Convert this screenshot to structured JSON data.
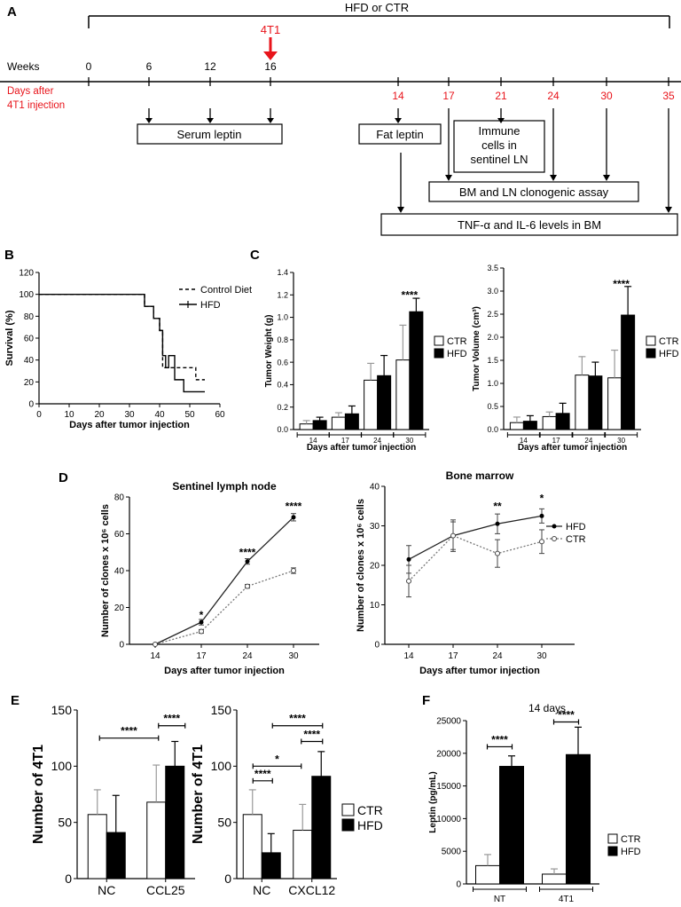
{
  "panels": {
    "A": "A",
    "B": "B",
    "C": "C",
    "D": "D",
    "E": "E",
    "F": "F"
  },
  "timeline": {
    "hfd_ctr": "HFD or CTR",
    "injection": "4T1",
    "weeks_label": "Weeks",
    "weeks": [
      "0",
      "6",
      "12",
      "16"
    ],
    "days_label_1": "Days after",
    "days_label_2": "4T1 injection",
    "days": [
      "14",
      "17",
      "21",
      "24",
      "30",
      "35"
    ],
    "serum_leptin": "Serum leptin",
    "fat_leptin": "Fat leptin",
    "immune": [
      "Immune",
      "cells in",
      "sentinel LN"
    ],
    "clonogenic": "BM and LN clonogenic assay",
    "cytokines": "TNF-α and IL-6 levels in BM",
    "colors": {
      "red": "#e8141b"
    }
  },
  "chart_data": [
    {
      "id": "B",
      "type": "line",
      "title": "",
      "xlabel": "Days after tumor injection",
      "ylabel": "Survival (%)",
      "xlim": [
        0,
        60
      ],
      "ylim": [
        0,
        120
      ],
      "xticks": [
        "0",
        "10",
        "20",
        "30",
        "40",
        "50",
        "60"
      ],
      "yticks": [
        "0",
        "20",
        "40",
        "60",
        "80",
        "100",
        "120"
      ],
      "series": [
        {
          "name": "Control Diet",
          "style": "dashed",
          "x": [
            0,
            35,
            35,
            38,
            38,
            40,
            40,
            41,
            41,
            43,
            43,
            52,
            52,
            55
          ],
          "y": [
            100,
            100,
            89,
            89,
            78,
            78,
            67,
            67,
            33,
            33,
            33,
            33,
            22,
            22
          ]
        },
        {
          "name": "HFD",
          "style": "solid",
          "x": [
            0,
            35,
            35,
            38,
            38,
            40,
            40,
            41,
            41,
            42,
            42,
            43,
            43,
            45,
            45,
            48,
            48,
            55
          ],
          "y": [
            100,
            100,
            89,
            89,
            78,
            78,
            67,
            67,
            44,
            44,
            33,
            33,
            44,
            44,
            22,
            22,
            11,
            11
          ]
        }
      ]
    },
    {
      "id": "C1",
      "type": "bar",
      "xlabel": "Days after tumor injection",
      "ylabel": "Tumor Weight (g)",
      "ylim": [
        0,
        1.4
      ],
      "yticks": [
        "0.0",
        "0.2",
        "0.4",
        "0.6",
        "0.8",
        "1.0",
        "1.2",
        "1.4"
      ],
      "categories": [
        "14",
        "17",
        "24",
        "30"
      ],
      "series": [
        {
          "name": "CTR",
          "values": [
            0.05,
            0.11,
            0.44,
            0.62
          ],
          "errors": [
            0.03,
            0.04,
            0.15,
            0.31
          ]
        },
        {
          "name": "HFD",
          "values": [
            0.08,
            0.14,
            0.48,
            1.05
          ],
          "errors": [
            0.03,
            0.07,
            0.18,
            0.12
          ]
        }
      ],
      "annotations": [
        {
          "text": "****",
          "category": "30"
        }
      ]
    },
    {
      "id": "C2",
      "type": "bar",
      "xlabel": "Days after tumor injection",
      "ylabel": "Tumor Volume (cm³)",
      "ylim": [
        0,
        3.5
      ],
      "yticks": [
        "0.0",
        "0.5",
        "1.0",
        "1.5",
        "2.0",
        "2.5",
        "3.0",
        "3.5"
      ],
      "categories": [
        "14",
        "17",
        "24",
        "30"
      ],
      "series": [
        {
          "name": "CTR",
          "values": [
            0.15,
            0.28,
            1.18,
            1.12
          ],
          "errors": [
            0.12,
            0.1,
            0.4,
            0.6
          ]
        },
        {
          "name": "HFD",
          "values": [
            0.18,
            0.35,
            1.16,
            2.48
          ],
          "errors": [
            0.12,
            0.22,
            0.3,
            0.62
          ]
        }
      ],
      "annotations": [
        {
          "text": "****",
          "category": "30"
        }
      ]
    },
    {
      "id": "D1",
      "type": "line",
      "title": "Sentinel lymph node",
      "xlabel": "Days after tumor injection",
      "ylabel": "Number of clones x 10⁶ cells",
      "ylim": [
        0,
        80
      ],
      "yticks": [
        "0",
        "20",
        "40",
        "60",
        "80"
      ],
      "categories": [
        "14",
        "17",
        "24",
        "30"
      ],
      "series": [
        {
          "name": "HFD",
          "style": "solid",
          "values": [
            0,
            12,
            45,
            69
          ],
          "errors": [
            0,
            1.5,
            1.5,
            2
          ]
        },
        {
          "name": "CTR",
          "style": "dotted",
          "values": [
            0,
            7,
            31.5,
            40
          ],
          "errors": [
            0,
            1,
            1,
            1.5
          ]
        }
      ],
      "annotations": [
        {
          "text": "*",
          "category": "17"
        },
        {
          "text": "****",
          "category": "24"
        },
        {
          "text": "****",
          "category": "30"
        }
      ]
    },
    {
      "id": "D2",
      "type": "line",
      "title": "Bone marrow",
      "xlabel": "Days after tumor injection",
      "ylabel": "Number of clones x 10⁶ cells",
      "ylim": [
        0,
        40
      ],
      "yticks": [
        "0",
        "10",
        "20",
        "30",
        "40"
      ],
      "categories": [
        "14",
        "17",
        "24",
        "30"
      ],
      "series": [
        {
          "name": "HFD",
          "style": "solid",
          "values": [
            21.5,
            27.5,
            30.5,
            32.5
          ],
          "errors": [
            3.5,
            3.5,
            2.5,
            1.8
          ]
        },
        {
          "name": "CTR",
          "style": "dotted",
          "values": [
            16,
            27.5,
            23,
            26
          ],
          "errors": [
            4,
            4,
            3.5,
            3
          ]
        }
      ],
      "annotations": [
        {
          "text": "**",
          "category": "24"
        },
        {
          "text": "*",
          "category": "30"
        }
      ]
    },
    {
      "id": "E1",
      "type": "bar",
      "xlabel": "",
      "ylabel": "Number of 4T1",
      "ylim": [
        0,
        150
      ],
      "yticks": [
        "0",
        "50",
        "100",
        "150"
      ],
      "categories": [
        "NC",
        "CCL25"
      ],
      "series": [
        {
          "name": "CTR",
          "values": [
            57,
            68
          ],
          "errors": [
            22,
            33
          ]
        },
        {
          "name": "HFD",
          "values": [
            41,
            100
          ],
          "errors": [
            33,
            22
          ]
        }
      ],
      "annotations": [
        "****",
        "****"
      ]
    },
    {
      "id": "E2",
      "type": "bar",
      "xlabel": "",
      "ylabel": "Number of 4T1",
      "ylim": [
        0,
        150
      ],
      "yticks": [
        "0",
        "50",
        "100",
        "150"
      ],
      "categories": [
        "NC",
        "CXCL12"
      ],
      "series": [
        {
          "name": "CTR",
          "values": [
            57,
            43
          ],
          "errors": [
            22,
            23
          ]
        },
        {
          "name": "HFD",
          "values": [
            23,
            91
          ],
          "errors": [
            17,
            22
          ]
        }
      ],
      "annotations": [
        "****",
        "*",
        "****",
        "****"
      ]
    },
    {
      "id": "F",
      "type": "bar",
      "title": "14 days",
      "xlabel": "",
      "ylabel": "Leptin (pg/mL)",
      "ylim": [
        0,
        25000
      ],
      "yticks": [
        "0",
        "5000",
        "10000",
        "15000",
        "20000",
        "25000"
      ],
      "categories": [
        "NT",
        "4T1"
      ],
      "series": [
        {
          "name": "CTR",
          "values": [
            2800,
            1500
          ],
          "errors": [
            1700,
            800
          ]
        },
        {
          "name": "HFD",
          "values": [
            18000,
            19800
          ],
          "errors": [
            1600,
            4200
          ]
        }
      ],
      "annotations": [
        "****",
        "****"
      ]
    }
  ]
}
